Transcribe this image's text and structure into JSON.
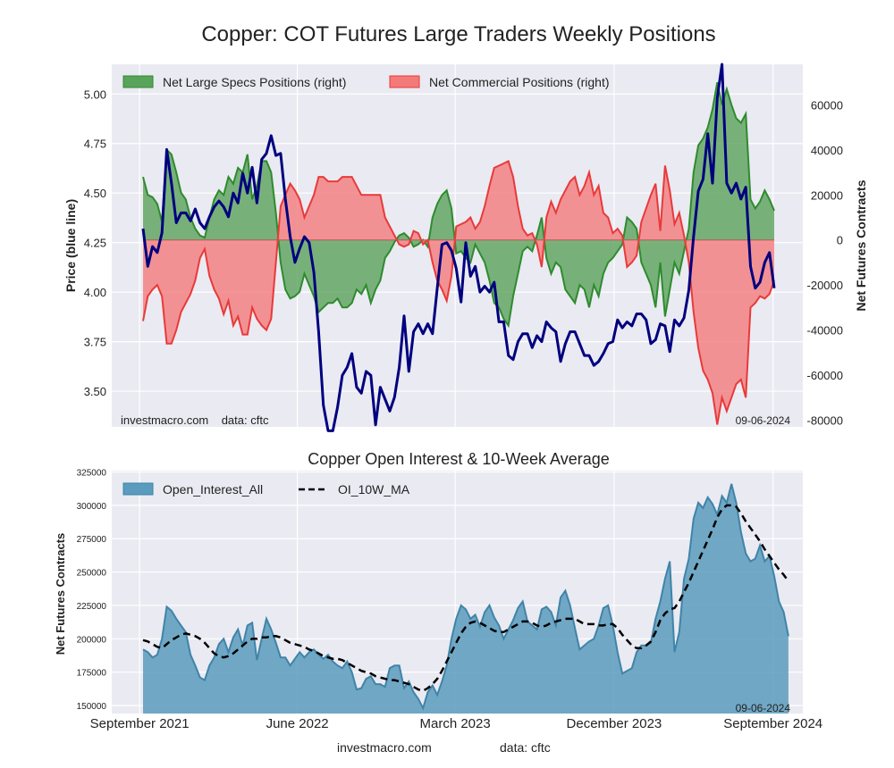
{
  "title": "Copper: COT Futures Large Traders Weekly Positions",
  "colors": {
    "price": "#00007f",
    "specs_fill": "#5aa35a",
    "specs_line": "#2e8b2e",
    "comm_fill": "#f47a7a",
    "comm_line": "#e83a3a",
    "oi_fill": "#5b9bbd",
    "oi_line": "#3f84a8",
    "ma": "#000000",
    "plot_bg": "#eaeaf2",
    "grid": "#ffffff"
  },
  "top": {
    "ylabel_left": "Price (blue line)",
    "ylabel_right": "Net Futures Contracts",
    "watermark": "investmacro.com    data: cftc",
    "date_stamp": "09-06-2024",
    "yticks_left": [
      "3.50",
      "3.75",
      "4.00",
      "4.25",
      "4.50",
      "4.75",
      "5.00"
    ],
    "yticks_right": [
      "-80000",
      "-60000",
      "-40000",
      "-20000",
      "0",
      "20000",
      "40000",
      "60000"
    ],
    "legend": [
      {
        "label": "Net Large Specs Positions (right)",
        "color": "#5aa35a"
      },
      {
        "label": "Net Commercial Positions (right)",
        "color": "#f47a7a"
      }
    ]
  },
  "bottom": {
    "title": "Copper Open Interest & 10-Week Average",
    "ylabel": "Net Futures Contracts",
    "date_stamp": "09-06-2024",
    "yticks": [
      "150000",
      "175000",
      "200000",
      "225000",
      "250000",
      "275000",
      "300000",
      "325000"
    ],
    "legend": [
      {
        "label": "Open_Interest_All",
        "color": "#5b9bbd"
      },
      {
        "label": "OI_10W_MA",
        "color": "#000000"
      }
    ]
  },
  "xticks": [
    "September 2021",
    "June 2022",
    "March 2023",
    "December 2023",
    "September 2024"
  ],
  "footer": {
    "source": "investmacro.com",
    "data": "data: cftc"
  },
  "chart_data": [
    {
      "type": "line",
      "title": "Copper: COT Futures Large Traders Weekly Positions",
      "ylabel": "Price (blue line)",
      "ylim_left": [
        3.32,
        5.15
      ],
      "ylim_right": [
        -83000,
        78000
      ],
      "x_range": [
        "2021-09-07",
        "2024-09-03"
      ],
      "series": [
        {
          "name": "Price",
          "axis": "left",
          "values": [
            4.32,
            4.13,
            4.23,
            4.2,
            4.3,
            4.72,
            4.55,
            4.35,
            4.4,
            4.4,
            4.36,
            4.42,
            4.35,
            4.32,
            4.38,
            4.43,
            4.46,
            4.43,
            4.38,
            4.5,
            4.45,
            4.6,
            4.5,
            4.63,
            4.45,
            4.67,
            4.7,
            4.79,
            4.69,
            4.7,
            4.47,
            4.28,
            4.15,
            4.22,
            4.28,
            4.25,
            4.1,
            3.8,
            3.43,
            3.3,
            3.3,
            3.42,
            3.58,
            3.62,
            3.69,
            3.52,
            3.49,
            3.6,
            3.58,
            3.33,
            3.52,
            3.46,
            3.4,
            3.47,
            3.62,
            3.88,
            3.6,
            3.8,
            3.84,
            3.79,
            3.84,
            3.79,
            4.02,
            4.24,
            4.25,
            4.21,
            4.12,
            3.95,
            4.25,
            4.08,
            4.13,
            4.0,
            4.03,
            4.0,
            4.05,
            3.85,
            3.85,
            3.68,
            3.66,
            3.75,
            3.79,
            3.79,
            3.72,
            3.78,
            3.75,
            3.85,
            3.82,
            3.8,
            3.65,
            3.74,
            3.8,
            3.8,
            3.74,
            3.68,
            3.68,
            3.63,
            3.65,
            3.69,
            3.74,
            3.75,
            3.86,
            3.82,
            3.85,
            3.83,
            3.89,
            3.89,
            3.86,
            3.74,
            3.76,
            3.84,
            3.83,
            3.7,
            3.86,
            3.83,
            3.87,
            4.01,
            4.28,
            4.51,
            4.57,
            4.8,
            4.55,
            4.98,
            5.15,
            4.55,
            4.5,
            4.55,
            4.47,
            4.53,
            4.13,
            4.02,
            4.05,
            4.15,
            4.2,
            4.02
          ]
        },
        {
          "name": "Net Large Specs Positions (right)",
          "axis": "right",
          "values": [
            28000,
            20000,
            19000,
            16000,
            8000,
            40000,
            38000,
            30000,
            21000,
            18000,
            10000,
            5000,
            2000,
            1000,
            10000,
            18000,
            22000,
            20000,
            28000,
            25000,
            32000,
            30000,
            38000,
            18000,
            24000,
            35000,
            35000,
            30000,
            12000,
            -10000,
            -22000,
            -26000,
            -25000,
            -23000,
            -15000,
            -20000,
            -25000,
            -32000,
            -30000,
            -28000,
            -28000,
            -26000,
            -30000,
            -30000,
            -28000,
            -22000,
            -24000,
            -20000,
            -28000,
            -22000,
            -18000,
            -8000,
            -5000,
            -1000,
            2000,
            3000,
            1000,
            -3000,
            -2000,
            0,
            -3000,
            10000,
            16000,
            20000,
            22000,
            14000,
            -6000,
            -5000,
            -8000,
            -10000,
            -2000,
            -6000,
            -10000,
            -18000,
            -28000,
            -30000,
            -35000,
            -38000,
            -25000,
            -15000,
            -5000,
            -3000,
            -5000,
            2000,
            10000,
            -8000,
            -15000,
            -10000,
            -12000,
            -22000,
            -25000,
            -28000,
            -20000,
            -22000,
            -30000,
            -20000,
            -25000,
            -15000,
            -10000,
            -8000,
            -5000,
            -2000,
            10000,
            8000,
            5000,
            -10000,
            -15000,
            -20000,
            -30000,
            -10000,
            -34000,
            -22000,
            -10000,
            -15000,
            -5000,
            5000,
            30000,
            42000,
            45000,
            50000,
            58000,
            70000,
            60000,
            67000,
            60000,
            54000,
            52000,
            56000,
            18000,
            14000,
            17000,
            22000,
            18000,
            13000
          ]
        },
        {
          "name": "Net Commercial Positions (right)",
          "axis": "right",
          "values": [
            -36000,
            -25000,
            -22000,
            -20000,
            -25000,
            -46000,
            -46000,
            -40000,
            -32000,
            -28000,
            -24000,
            -18000,
            -8000,
            -4000,
            -16000,
            -22000,
            -26000,
            -33000,
            -27000,
            -38000,
            -34000,
            -42000,
            -42000,
            -30000,
            -35000,
            -38000,
            -40000,
            -35000,
            -10000,
            15000,
            20000,
            25000,
            22000,
            18000,
            10000,
            15000,
            20000,
            28000,
            28000,
            26000,
            26000,
            26000,
            28000,
            28000,
            28000,
            24000,
            20000,
            20000,
            20000,
            20000,
            20000,
            10000,
            6000,
            2000,
            -2000,
            -3000,
            -2000,
            4000,
            3000,
            -2000,
            0,
            -10000,
            -18000,
            -22000,
            -27000,
            -16000,
            6000,
            7000,
            8000,
            10000,
            5000,
            8000,
            15000,
            24000,
            32000,
            33000,
            34000,
            35000,
            28000,
            15000,
            5000,
            2000,
            3000,
            -2000,
            -12000,
            10000,
            17000,
            12000,
            18000,
            22000,
            26000,
            28000,
            20000,
            24000,
            30000,
            20000,
            24000,
            12000,
            10000,
            3000,
            5000,
            2000,
            -12000,
            -10000,
            -7000,
            8000,
            14000,
            20000,
            25000,
            4000,
            33000,
            22000,
            7000,
            12000,
            2000,
            -10000,
            -32000,
            -48000,
            -58000,
            -62000,
            -68000,
            -82000,
            -70000,
            -76000,
            -70000,
            -64000,
            -62000,
            -70000,
            -30000,
            -28000,
            -25000,
            -26000,
            -24000,
            -18000
          ]
        }
      ]
    },
    {
      "type": "area",
      "title": "Copper Open Interest & 10-Week Average",
      "ylabel": "Net Futures Contracts",
      "ylim": [
        144000,
        326000
      ],
      "x_range": [
        "2021-09-07",
        "2024-09-03"
      ],
      "series": [
        {
          "name": "Open_Interest_All",
          "values": [
            192000,
            190000,
            186000,
            188000,
            200000,
            224000,
            221000,
            215000,
            210000,
            205000,
            188000,
            180000,
            171000,
            169000,
            180000,
            186000,
            196000,
            200000,
            190000,
            201000,
            207000,
            195000,
            210000,
            212000,
            184000,
            200000,
            215000,
            207000,
            197000,
            186000,
            186000,
            180000,
            185000,
            190000,
            186000,
            190000,
            192000,
            188000,
            185000,
            188000,
            183000,
            180000,
            178000,
            183000,
            175000,
            162000,
            163000,
            170000,
            172000,
            166000,
            166000,
            164000,
            178000,
            180000,
            180000,
            163000,
            168000,
            160000,
            155000,
            148000,
            160000,
            165000,
            158000,
            168000,
            180000,
            200000,
            215000,
            225000,
            222000,
            215000,
            218000,
            209000,
            220000,
            225000,
            216000,
            210000,
            200000,
            207000,
            214000,
            223000,
            228000,
            213000,
            210000,
            207000,
            222000,
            224000,
            220000,
            210000,
            231000,
            236000,
            225000,
            208000,
            192000,
            195000,
            198000,
            200000,
            210000,
            223000,
            225000,
            210000,
            190000,
            174000,
            176000,
            178000,
            190000,
            195000,
            195000,
            197000,
            215000,
            228000,
            245000,
            258000,
            190000,
            205000,
            245000,
            260000,
            290000,
            302000,
            298000,
            306000,
            301000,
            293000,
            307000,
            302000,
            316000,
            302000,
            280000,
            264000,
            258000,
            260000,
            270000,
            258000,
            262000,
            247000,
            228000,
            220000,
            202000
          ]
        },
        {
          "name": "OI_10W_MA",
          "values": [
            199000,
            198000,
            196000,
            194000,
            193000,
            196000,
            199000,
            201000,
            203000,
            204000,
            203000,
            202000,
            200000,
            197000,
            193000,
            189000,
            187000,
            186000,
            187000,
            189000,
            192000,
            195000,
            198000,
            200000,
            200000,
            201000,
            201000,
            202000,
            202000,
            201000,
            199000,
            197000,
            196000,
            195000,
            194000,
            192000,
            191000,
            189000,
            187000,
            186000,
            185000,
            185000,
            184000,
            182000,
            180000,
            178000,
            176000,
            175000,
            174000,
            172000,
            171000,
            170000,
            169000,
            169000,
            168000,
            167000,
            166000,
            164000,
            162000,
            161000,
            163000,
            166000,
            170000,
            176000,
            183000,
            190000,
            197000,
            204000,
            209000,
            212000,
            213000,
            212000,
            210000,
            208000,
            206000,
            205000,
            205000,
            207000,
            209000,
            211000,
            213000,
            213000,
            212000,
            210000,
            209000,
            210000,
            212000,
            213000,
            214000,
            215000,
            215000,
            215000,
            213000,
            211000,
            211000,
            211000,
            210000,
            210000,
            211000,
            211000,
            208000,
            203000,
            199000,
            195000,
            193000,
            193000,
            195000,
            198000,
            205000,
            214000,
            219000,
            222000,
            223000,
            228000,
            235000,
            242000,
            250000,
            258000,
            266000,
            274000,
            282000,
            291000,
            297000,
            300000,
            300000,
            299000,
            294000,
            288000,
            283000,
            278000,
            273000,
            267000,
            262000,
            257000,
            252000,
            248000,
            243000
          ]
        }
      ]
    }
  ]
}
